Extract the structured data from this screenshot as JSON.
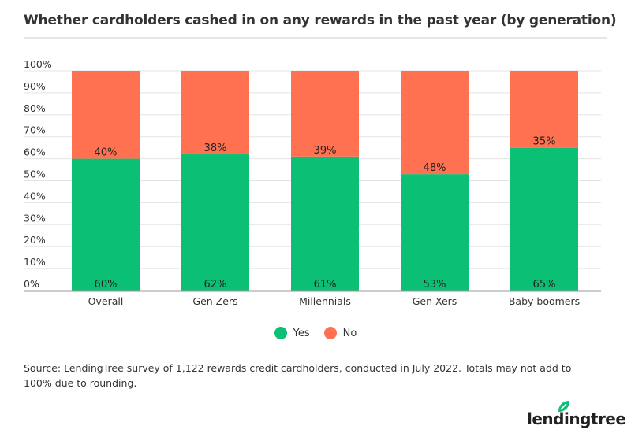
{
  "title": "Whether cardholders cashed in on any rewards in the past year (by generation)",
  "source": "Source: LendingTree survey of 1,122 rewards credit cardholders, conducted in July 2022. Totals may not add to 100% due to rounding.",
  "logo_text": "lendingtree",
  "colors": {
    "yes": "#0bbf74",
    "no": "#ff7150"
  },
  "chart_data": {
    "type": "bar",
    "stacked": true,
    "categories": [
      "Overall",
      "Gen Zers",
      "Millennials",
      "Gen Xers",
      "Baby boomers"
    ],
    "series": [
      {
        "name": "Yes",
        "values": [
          60,
          62,
          61,
          53,
          65
        ]
      },
      {
        "name": "No",
        "values": [
          40,
          38,
          39,
          48,
          35
        ]
      }
    ],
    "yticks": [
      "0%",
      "10%",
      "20%",
      "30%",
      "40%",
      "50%",
      "60%",
      "70%",
      "80%",
      "90%",
      "100%"
    ],
    "ylim": [
      0,
      100
    ],
    "grid": true,
    "legend": "bottom"
  }
}
